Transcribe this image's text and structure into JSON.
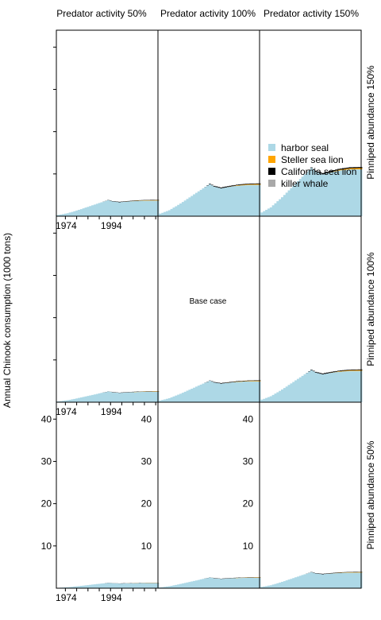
{
  "chart_data": {
    "type": "area",
    "stacked": true,
    "ylabel": "Annual Chinook consumption (1000 tons)",
    "column_labels": [
      "Predator activity 50%",
      "Predator activity 100%",
      "Predator activity 150%"
    ],
    "row_labels": [
      "Pinniped abundance 150%",
      "Pinniped abundance 100%",
      "Pinniped abundance 50%"
    ],
    "x_tick_labels": [
      "1974",
      "1994"
    ],
    "y_ticks": [
      10,
      20,
      30,
      40
    ],
    "ylim": [
      0,
      44
    ],
    "xlim": [
      1970,
      2015
    ],
    "annotation": {
      "text": "Base case",
      "row": 1,
      "col": 1
    },
    "legend": {
      "placement": "inside-top-right-panel",
      "entries": [
        {
          "name": "harbor seal",
          "color": "#add8e6"
        },
        {
          "name": "Steller sea lion",
          "color": "#ffa500"
        },
        {
          "name": "California sea lion",
          "color": "#000000"
        },
        {
          "name": "killer whale",
          "color": "#a9a9a9"
        }
      ]
    },
    "x_years": [
      1970,
      1975,
      1980,
      1985,
      1990,
      1993,
      1995,
      1998,
      2000,
      2005,
      2010,
      2015
    ],
    "base_harbor_seal": [
      0.2,
      0.7,
      1.5,
      2.4,
      3.3,
      3.8,
      3.5,
      3.3,
      3.4,
      3.6,
      3.7,
      3.7
    ],
    "base_steller_sea_lion": [
      0,
      0,
      0,
      0,
      0,
      0,
      0,
      0,
      0,
      0.05,
      0.08,
      0.1
    ],
    "base_california_sea_lion": [
      0,
      0,
      0,
      0,
      0,
      0.05,
      0.08,
      0.1,
      0.1,
      0.08,
      0.08,
      0.08
    ],
    "base_killer_whale": [
      0,
      0,
      0,
      0,
      0,
      0,
      0,
      0,
      0,
      0,
      0,
      0
    ],
    "panel_multipliers": [
      [
        1.0,
        2.0,
        3.0
      ],
      [
        0.667,
        1.333,
        2.0
      ],
      [
        0.333,
        0.667,
        1.0
      ]
    ]
  }
}
